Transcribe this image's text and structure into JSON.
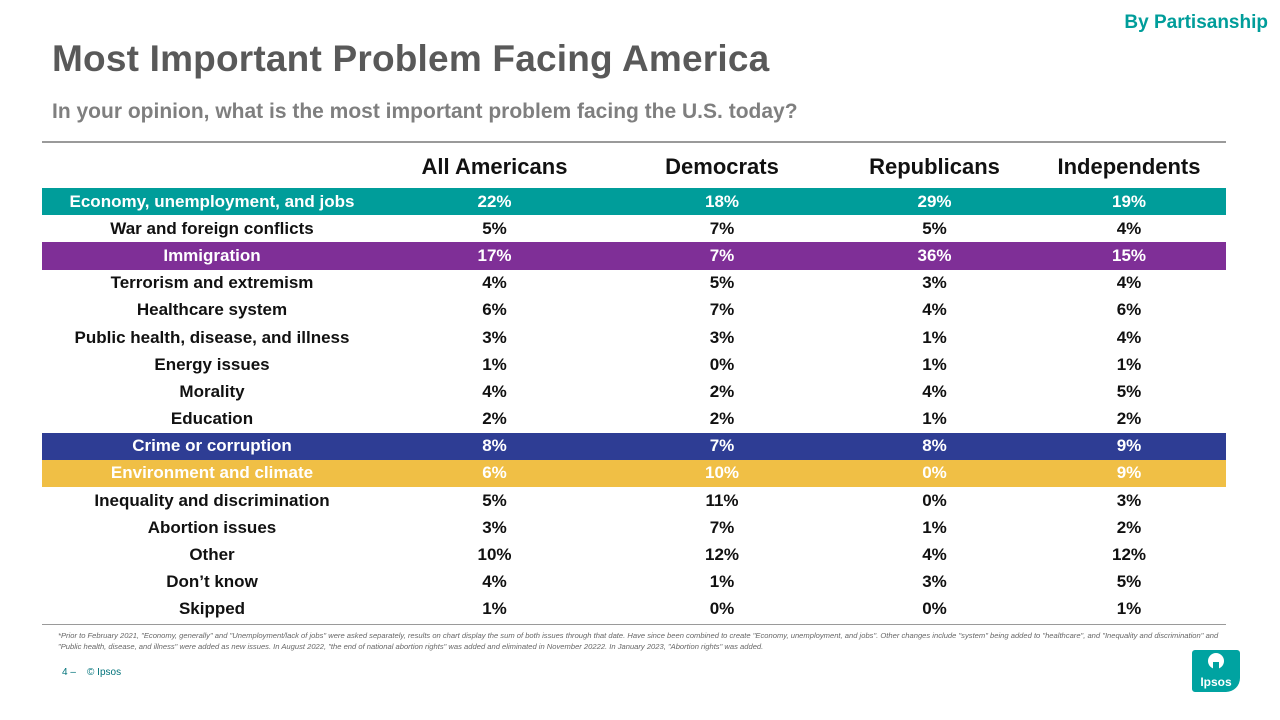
{
  "top_tag": "By Partisanship",
  "footer": {
    "page": "4 –",
    "copyright": "© Ipsos"
  },
  "logo_text": "Ipsos",
  "footnote": "*Prior to February 2021, \"Economy, generally\" and \"Unemployment/lack of jobs\" were asked separately, results on chart display the sum of both issues through that date. Have since been combined to create \"Economy, unemployment, and jobs\". Other changes include \"system\" being added to \"healthcare\", and \"Inequality and discrimination\" and \"Public health, disease, and illness\" were added as new issues. In August 2022, \"the end of national abortion rights\" was added and eliminated in November 20222. In January 2023, \"Abortion rights\" was added.",
  "colors": {
    "teal": "#009d9a",
    "purple": "#7f2f97",
    "navy": "#2e3d94",
    "gold": "#f0bf45",
    "logo": "#00a3a1"
  },
  "chart_data": {
    "type": "table",
    "title": "Most Important Problem Facing America",
    "subtitle": "In your opinion, what is the most important problem facing the U.S. today?",
    "columns": [
      "All Americans",
      "Democrats",
      "Republicans",
      "Independents"
    ],
    "rows": [
      {
        "label": "Economy, unemployment, and jobs",
        "values": [
          "22%",
          "18%",
          "29%",
          "19%"
        ],
        "highlight": "#009d9a"
      },
      {
        "label": "War and foreign conflicts",
        "values": [
          "5%",
          "7%",
          "5%",
          "4%"
        ]
      },
      {
        "label": "Immigration",
        "values": [
          "17%",
          "7%",
          "36%",
          "15%"
        ],
        "highlight": "#7f2f97"
      },
      {
        "label": "Terrorism and extremism",
        "values": [
          "4%",
          "5%",
          "3%",
          "4%"
        ]
      },
      {
        "label": "Healthcare system",
        "values": [
          "6%",
          "7%",
          "4%",
          "6%"
        ]
      },
      {
        "label": "Public health, disease, and illness",
        "values": [
          "3%",
          "3%",
          "1%",
          "4%"
        ]
      },
      {
        "label": "Energy issues",
        "values": [
          "1%",
          "0%",
          "1%",
          "1%"
        ]
      },
      {
        "label": "Morality",
        "values": [
          "4%",
          "2%",
          "4%",
          "5%"
        ]
      },
      {
        "label": "Education",
        "values": [
          "2%",
          "2%",
          "1%",
          "2%"
        ]
      },
      {
        "label": "Crime or corruption",
        "values": [
          "8%",
          "7%",
          "8%",
          "9%"
        ],
        "highlight": "#2e3d94"
      },
      {
        "label": "Environment and climate",
        "values": [
          "6%",
          "10%",
          "0%",
          "9%"
        ],
        "highlight": "#f0bf45"
      },
      {
        "label": "Inequality and discrimination",
        "values": [
          "5%",
          "11%",
          "0%",
          "3%"
        ]
      },
      {
        "label": "Abortion issues",
        "values": [
          "3%",
          "7%",
          "1%",
          "2%"
        ]
      },
      {
        "label": "Other",
        "values": [
          "10%",
          "12%",
          "4%",
          "12%"
        ]
      },
      {
        "label": "Don’t know",
        "values": [
          "4%",
          "1%",
          "3%",
          "5%"
        ]
      },
      {
        "label": "Skipped",
        "values": [
          "1%",
          "0%",
          "0%",
          "1%"
        ]
      }
    ]
  }
}
